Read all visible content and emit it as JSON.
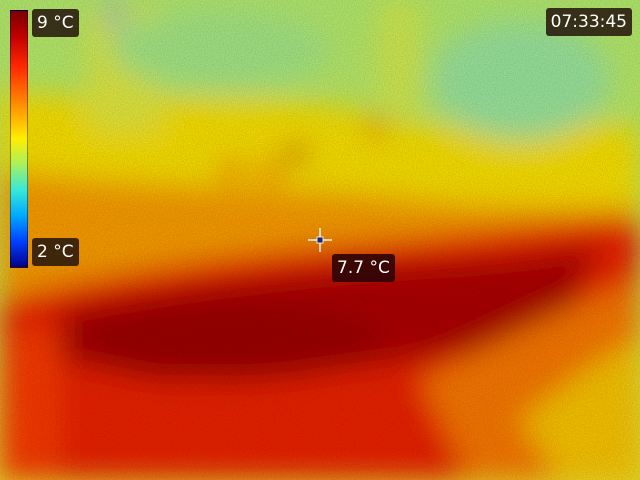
{
  "scale": {
    "max_label": "9 °C",
    "min_label": "2 °C"
  },
  "clock": {
    "time": "07:33:45"
  },
  "spot": {
    "temperature": "7.7 °C"
  },
  "palette": {
    "hot": "#a80000",
    "warm": "#ff3000",
    "mid": "#ffd200",
    "cool": "#b4f064",
    "cold": "#00a0ff"
  }
}
